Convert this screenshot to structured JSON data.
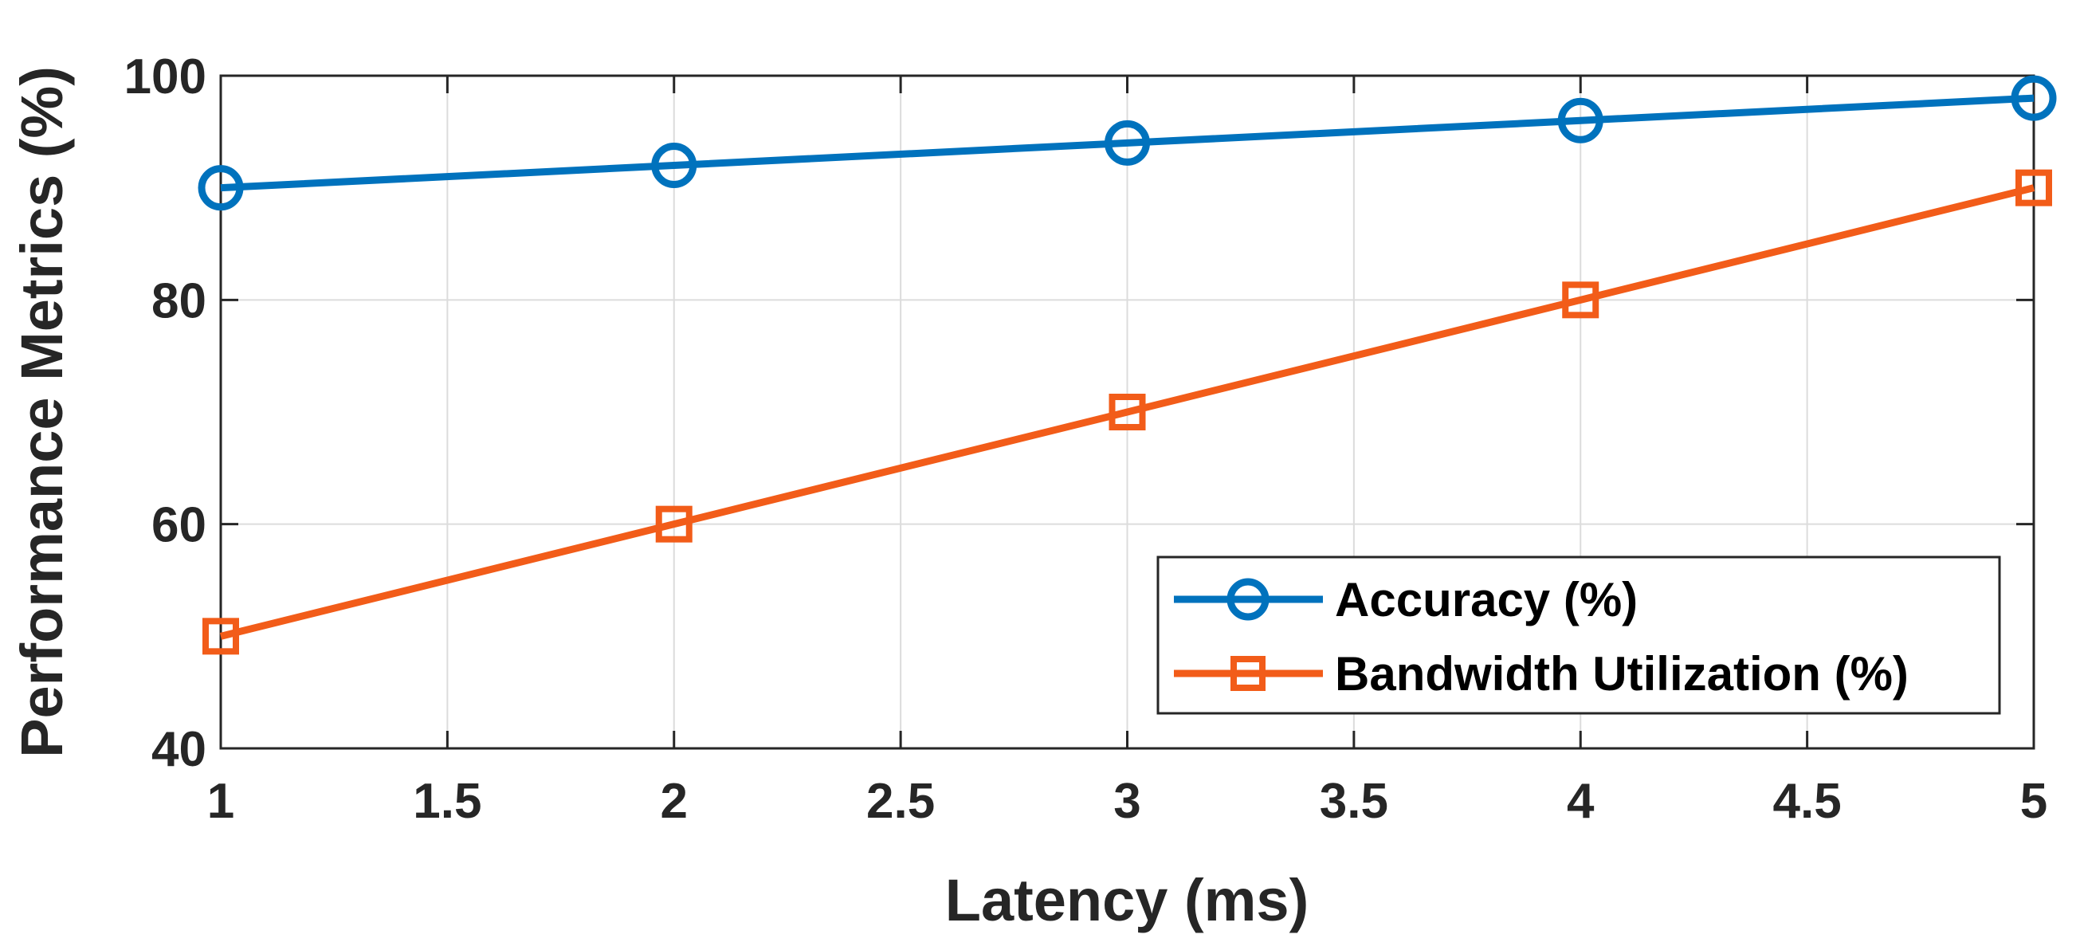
{
  "chart_data": {
    "type": "line",
    "title": "",
    "xlabel": "Latency (ms)",
    "ylabel": "Performance Metrics (%)",
    "xlim": [
      1,
      5
    ],
    "ylim": [
      40,
      100
    ],
    "xticks": [
      1,
      1.5,
      2,
      2.5,
      3,
      3.5,
      4,
      4.5,
      5
    ],
    "xtick_labels": [
      "1",
      "1.5",
      "2",
      "2.5",
      "3",
      "3.5",
      "4",
      "4.5",
      "5"
    ],
    "yticks": [
      40,
      60,
      80,
      100
    ],
    "ytick_labels": [
      "40",
      "60",
      "80",
      "100"
    ],
    "grid": true,
    "legend_position": "bottom-right",
    "x": [
      1,
      2,
      3,
      4,
      5
    ],
    "series": [
      {
        "name": "Accuracy (%)",
        "values": [
          90,
          92,
          94,
          96,
          98
        ],
        "color": "#0072BD",
        "marker": "circle"
      },
      {
        "name": "Bandwidth Utilization (%)",
        "values": [
          50,
          60,
          70,
          80,
          90
        ],
        "color": "#F25C19",
        "marker": "square"
      }
    ]
  }
}
